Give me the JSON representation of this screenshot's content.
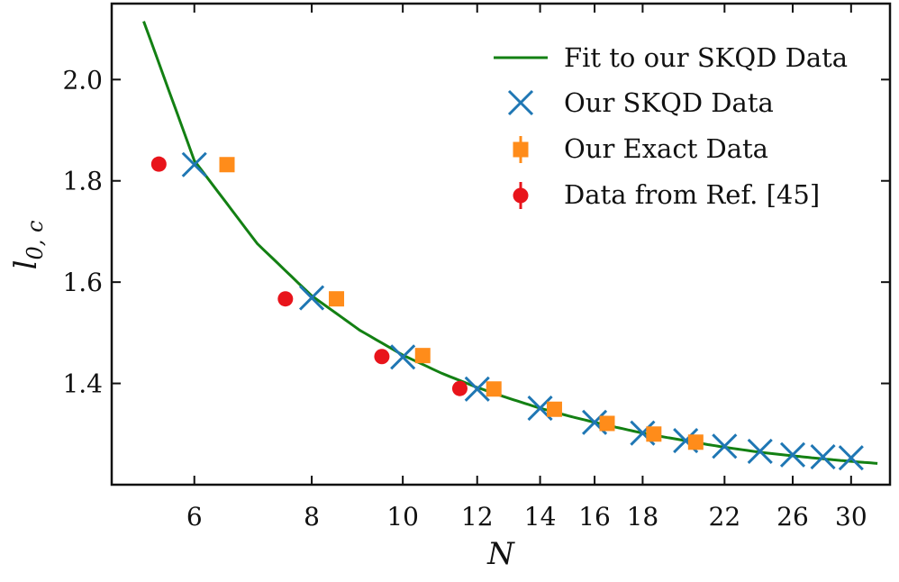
{
  "colors": {
    "fit": "#138013",
    "skqd": "#1f77b4",
    "exact": "#ff8c1a",
    "ref": "#e8141b",
    "axis": "#111111"
  },
  "chart_data": {
    "type": "scatter",
    "title": "",
    "xlabel": "N",
    "ylabel": "l_{0,c}",
    "xscale": "log",
    "xlim": [
      4.9,
      33
    ],
    "ylim": [
      1.2,
      2.15
    ],
    "xticks": [
      6,
      8,
      10,
      12,
      14,
      16,
      18,
      22,
      26,
      30
    ],
    "xtick_labels": [
      "6",
      "8",
      "10",
      "12",
      "14",
      "16",
      "18",
      "22",
      "26",
      "30"
    ],
    "yticks": [
      1.4,
      1.6,
      1.8,
      2.0
    ],
    "ytick_labels": [
      "1.4",
      "1.6",
      "1.8",
      "2.0"
    ],
    "legend_position": "top-right",
    "fit": {
      "name": "Fit to our SKQD Data",
      "x": [
        5.3,
        6,
        7,
        8,
        9,
        10,
        11,
        12,
        13,
        14,
        15,
        16,
        17,
        18,
        19,
        20,
        21,
        22,
        24,
        26,
        28,
        30,
        32
      ],
      "y": [
        2.115,
        1.84,
        1.676,
        1.573,
        1.505,
        1.456,
        1.42,
        1.392,
        1.37,
        1.351,
        1.336,
        1.323,
        1.312,
        1.302,
        1.294,
        1.287,
        1.28,
        1.274,
        1.264,
        1.257,
        1.251,
        1.246,
        1.242
      ]
    },
    "series": [
      {
        "name": "Our SKQD Data",
        "marker": "x",
        "x": [
          6,
          8,
          10,
          12,
          14,
          16,
          18,
          20,
          22,
          24,
          26,
          28,
          30
        ],
        "y": [
          1.832,
          1.569,
          1.452,
          1.389,
          1.351,
          1.323,
          1.302,
          1.287,
          1.276,
          1.266,
          1.259,
          1.255,
          1.253
        ]
      },
      {
        "name": "Our Exact Data",
        "marker": "square",
        "x": [
          6.5,
          8.5,
          10.5,
          12.5,
          14.5,
          16.5,
          18.5,
          20.5
        ],
        "y": [
          1.832,
          1.567,
          1.455,
          1.389,
          1.349,
          1.321,
          1.3,
          1.284
        ]
      },
      {
        "name": "Data from Ref. [45]",
        "marker": "circle",
        "x": [
          5.5,
          7.5,
          9.5,
          11.5
        ],
        "y": [
          1.833,
          1.567,
          1.453,
          1.39
        ]
      }
    ]
  }
}
